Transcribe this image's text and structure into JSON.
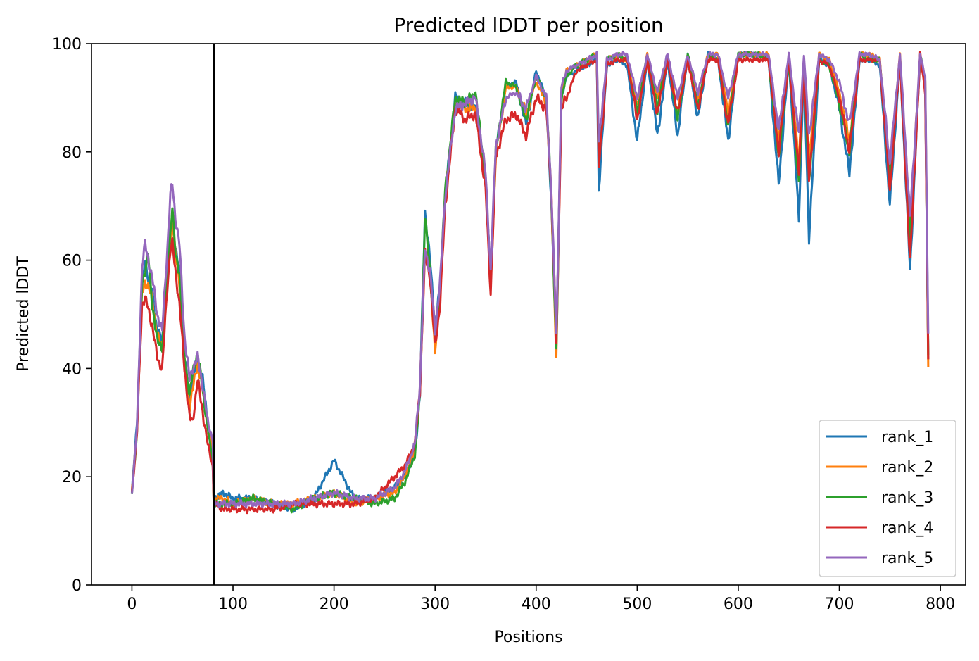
{
  "chart_data": {
    "type": "line",
    "title": "Predicted lDDT per position",
    "xlabel": "Positions",
    "ylabel": "Predicted lDDT",
    "xlim": [
      -40,
      825
    ],
    "ylim": [
      0,
      100
    ],
    "xticks": [
      0,
      100,
      200,
      300,
      400,
      500,
      600,
      700,
      800
    ],
    "yticks": [
      0,
      20,
      40,
      60,
      80,
      100
    ],
    "grid": false,
    "legend_position": "lower right",
    "vline_x": 81,
    "colors": {
      "rank_1": "#1f77b4",
      "rank_2": "#ff7f0e",
      "rank_3": "#2ca02c",
      "rank_4": "#d62728",
      "rank_5": "#9467bd",
      "vline": "#000000"
    },
    "base_x": [
      0,
      5,
      10,
      13,
      16,
      20,
      25,
      30,
      35,
      38,
      40,
      43,
      47,
      52,
      57,
      60,
      65,
      70,
      75,
      80,
      81,
      90,
      100,
      120,
      140,
      160,
      180,
      200,
      220,
      240,
      260,
      270,
      280,
      285,
      290,
      295,
      300,
      305,
      310,
      320,
      330,
      340,
      350,
      355,
      360,
      370,
      380,
      390,
      400,
      410,
      415,
      420,
      425,
      430,
      440,
      450,
      460,
      462,
      470,
      480,
      490,
      500,
      510,
      520,
      530,
      540,
      550,
      560,
      570,
      580,
      590,
      600,
      610,
      620,
      630,
      640,
      650,
      660,
      665,
      670,
      680,
      690,
      700,
      710,
      720,
      730,
      740,
      750,
      760,
      770,
      780,
      785,
      788
    ],
    "series": [
      {
        "name": "rank_1",
        "values": [
          17,
          30,
          55,
          60,
          57,
          54,
          47,
          45,
          58,
          66,
          68,
          62,
          58,
          42,
          34,
          38,
          42,
          38,
          30,
          26,
          16,
          17,
          16,
          16,
          15,
          14,
          16,
          23,
          16,
          16,
          18,
          20,
          24,
          35,
          69,
          60,
          48,
          55,
          72,
          90,
          89,
          88,
          75,
          56,
          80,
          92,
          93,
          85,
          95,
          90,
          70,
          45,
          90,
          94,
          95,
          96,
          97,
          73,
          96,
          97,
          96,
          82,
          97,
          83,
          97,
          83,
          98,
          86,
          98,
          97,
          82,
          98,
          98,
          98,
          97,
          74,
          97,
          68,
          96,
          64,
          97,
          96,
          88,
          76,
          97,
          97,
          96,
          70,
          97,
          58,
          98,
          92,
          42
        ]
      },
      {
        "name": "rank_2",
        "values": [
          17,
          29,
          54,
          56,
          55,
          53,
          46,
          44,
          57,
          64,
          68,
          61,
          56,
          41,
          33,
          36,
          41,
          36,
          30,
          24,
          16,
          16,
          15,
          16,
          15,
          15,
          16,
          17,
          15,
          16,
          17,
          20,
          25,
          36,
          62,
          58,
          43,
          54,
          72,
          89,
          88,
          88,
          75,
          55,
          79,
          92,
          92,
          87,
          93,
          89,
          72,
          42,
          91,
          95,
          96,
          97,
          98,
          80,
          97,
          98,
          97,
          88,
          98,
          90,
          98,
          87,
          98,
          89,
          98,
          98,
          87,
          98,
          98,
          98,
          98,
          82,
          98,
          78,
          97,
          78,
          98,
          97,
          91,
          82,
          98,
          98,
          97,
          76,
          98,
          66,
          98,
          93,
          41
        ]
      },
      {
        "name": "rank_3",
        "values": [
          17,
          28,
          56,
          58,
          61,
          52,
          45,
          44,
          58,
          65,
          70,
          61,
          58,
          42,
          35,
          39,
          43,
          36,
          29,
          22,
          15,
          15,
          15,
          16,
          15,
          14,
          16,
          17,
          16,
          15,
          16,
          19,
          24,
          35,
          68,
          58,
          45,
          55,
          73,
          90,
          89,
          91,
          75,
          56,
          80,
          93,
          92,
          86,
          94,
          90,
          72,
          43,
          90,
          94,
          96,
          97,
          98,
          79,
          97,
          98,
          97,
          87,
          98,
          88,
          98,
          86,
          98,
          88,
          98,
          97,
          85,
          98,
          98,
          98,
          97,
          79,
          97,
          74,
          97,
          74,
          97,
          96,
          89,
          80,
          98,
          97,
          97,
          74,
          98,
          64,
          98,
          93,
          42
        ]
      },
      {
        "name": "rank_4",
        "values": [
          17,
          28,
          52,
          53,
          51,
          48,
          42,
          40,
          55,
          62,
          63,
          58,
          52,
          40,
          31,
          30,
          38,
          32,
          26,
          22,
          15,
          14,
          14,
          14,
          14,
          15,
          15,
          15,
          15,
          16,
          20,
          22,
          26,
          36,
          61,
          57,
          44,
          52,
          70,
          88,
          86,
          87,
          73,
          54,
          79,
          86,
          87,
          83,
          90,
          88,
          73,
          45,
          88,
          90,
          95,
          96,
          97,
          77,
          96,
          97,
          97,
          86,
          97,
          87,
          97,
          87,
          97,
          88,
          97,
          97,
          85,
          97,
          97,
          97,
          97,
          80,
          97,
          76,
          97,
          75,
          97,
          96,
          90,
          80,
          97,
          97,
          97,
          73,
          97,
          60,
          98,
          91,
          42
        ]
      },
      {
        "name": "rank_5",
        "values": [
          17,
          29,
          59,
          63,
          60,
          57,
          50,
          47,
          62,
          72,
          74,
          68,
          63,
          46,
          38,
          40,
          42,
          37,
          30,
          27,
          15,
          15,
          15,
          15,
          15,
          15,
          16,
          17,
          16,
          16,
          18,
          21,
          26,
          37,
          62,
          58,
          47,
          56,
          72,
          88,
          89,
          90,
          76,
          58,
          81,
          90,
          91,
          88,
          94,
          90,
          73,
          46,
          92,
          95,
          96,
          97,
          98,
          82,
          97,
          98,
          98,
          90,
          98,
          91,
          98,
          90,
          98,
          91,
          98,
          98,
          90,
          98,
          98,
          98,
          98,
          84,
          98,
          83,
          98,
          83,
          98,
          97,
          93,
          85,
          98,
          98,
          97,
          78,
          98,
          68,
          98,
          94,
          46
        ]
      }
    ]
  }
}
